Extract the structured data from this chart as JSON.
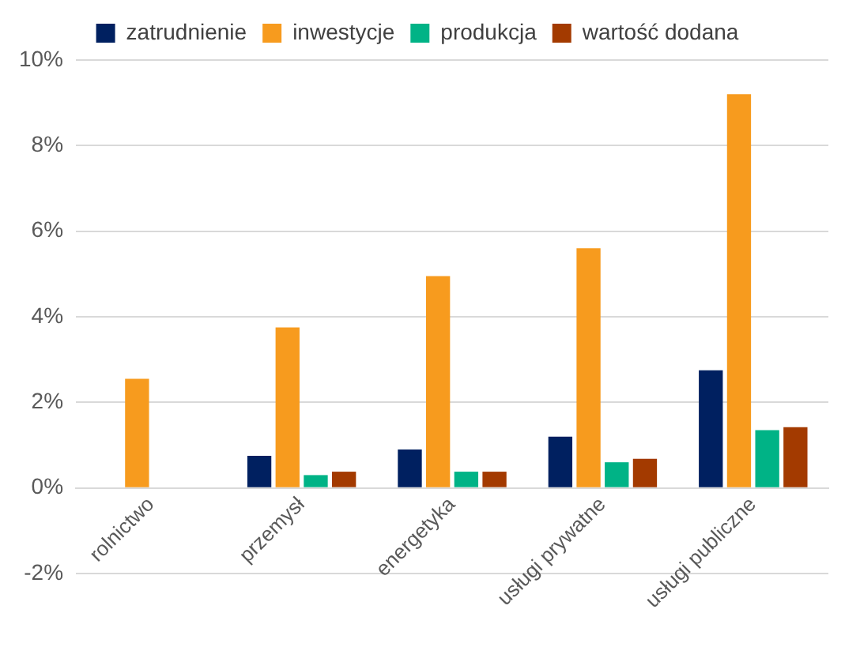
{
  "chart_data": {
    "type": "bar",
    "categories": [
      "rolnictwo",
      "przemysł",
      "energetyka",
      "usługi prywatne",
      "usługi publiczne"
    ],
    "series": [
      {
        "name": "zatrudnienie",
        "color": "#002060",
        "values": [
          0,
          0.75,
          0.9,
          1.2,
          2.75
        ]
      },
      {
        "name": "inwestycje",
        "color": "#f79b1e",
        "values": [
          2.55,
          3.75,
          4.95,
          5.6,
          9.2
        ]
      },
      {
        "name": "produkcja",
        "color": "#00b386",
        "values": [
          0,
          0.3,
          0.38,
          0.6,
          1.35
        ]
      },
      {
        "name": "wartość dodana",
        "color": "#a33a00",
        "values": [
          0,
          0.38,
          0.38,
          0.68,
          1.42
        ]
      }
    ],
    "ylim": [
      -2,
      10
    ],
    "yticks": [
      {
        "value": -2,
        "label": "-2%"
      },
      {
        "value": 0,
        "label": "0%"
      },
      {
        "value": 2,
        "label": "2%"
      },
      {
        "value": 4,
        "label": "4%"
      },
      {
        "value": 6,
        "label": "6%"
      },
      {
        "value": 8,
        "label": "8%"
      },
      {
        "value": 10,
        "label": "10%"
      }
    ],
    "grid": "y",
    "legend": "top"
  }
}
